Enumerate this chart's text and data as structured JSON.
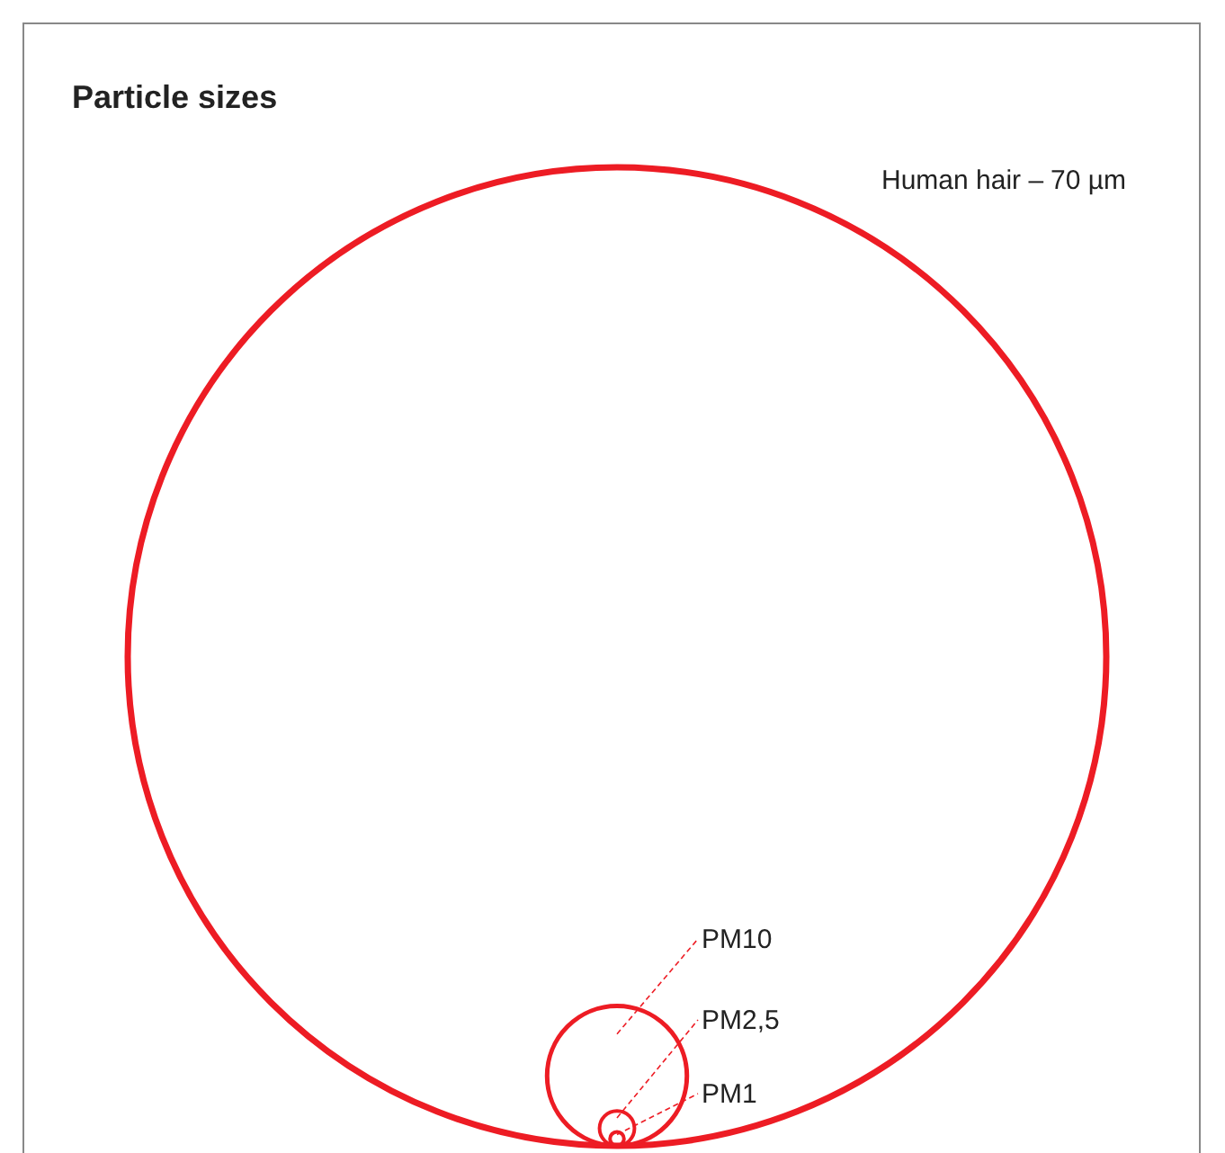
{
  "chart_data": {
    "type": "other",
    "title": "Particle sizes",
    "categories": [
      "Human hair –",
      "PM",
      "PM",
      "PM"
    ],
    "values": [
      70,
      10,
      2.5,
      1
    ],
    "value_labels": [
      "70 µm",
      "10",
      "2,5",
      "1"
    ],
    "color": "#ed1c24"
  }
}
